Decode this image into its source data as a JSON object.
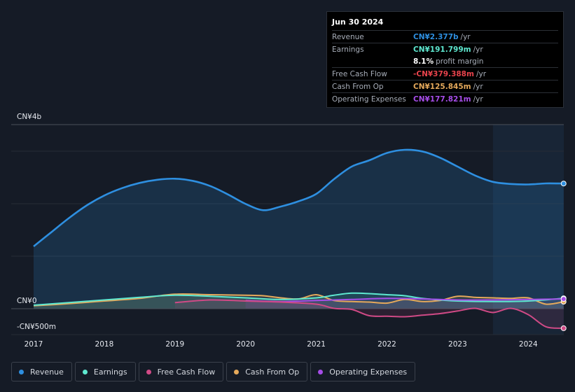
{
  "tooltip": {
    "date": "Jun 30 2024",
    "rows": [
      {
        "label": "Revenue",
        "value": "CN¥2.377b",
        "unit": "/yr",
        "color": "#2e8fe0"
      },
      {
        "label": "Earnings",
        "value": "CN¥191.799m",
        "unit": "/yr",
        "color": "#5ee8d0"
      },
      {
        "label": "",
        "value": "8.1%",
        "unit": "profit margin",
        "color": "#ffffff"
      },
      {
        "label": "Free Cash Flow",
        "value": "-CN¥379.388m",
        "unit": "/yr",
        "color": "#e8434c"
      },
      {
        "label": "Cash From Op",
        "value": "CN¥125.845m",
        "unit": "/yr",
        "color": "#e5a95b"
      },
      {
        "label": "Operating Expenses",
        "value": "CN¥177.821m",
        "unit": "/yr",
        "color": "#a64de8"
      }
    ]
  },
  "legend": [
    {
      "label": "Revenue",
      "color": "#2e8fe0"
    },
    {
      "label": "Earnings",
      "color": "#5ee8d0"
    },
    {
      "label": "Free Cash Flow",
      "color": "#d04a86"
    },
    {
      "label": "Cash From Op",
      "color": "#e5a95b"
    },
    {
      "label": "Operating Expenses",
      "color": "#a64de8"
    }
  ],
  "chart_data": {
    "type": "area",
    "title": "",
    "xlabel": "",
    "ylabel": "",
    "unit": "CN¥ millions",
    "y_labels": [
      "CN¥4b",
      "CN¥0",
      "-CN¥500m"
    ],
    "ylim": [
      -500,
      3500
    ],
    "xlim": [
      2016.98,
      2024.5
    ],
    "x_ticks": [
      "2017",
      "2018",
      "2019",
      "2020",
      "2021",
      "2022",
      "2023",
      "2024"
    ],
    "x_tick_values": [
      2017,
      2018,
      2019,
      2020,
      2021,
      2022,
      2023,
      2024
    ],
    "forecast_start": 2023.5,
    "series": [
      {
        "name": "Revenue",
        "color": "#2e8fe0",
        "x": [
          2017,
          2017.25,
          2017.5,
          2017.75,
          2018,
          2018.25,
          2018.5,
          2018.75,
          2019,
          2019.25,
          2019.5,
          2019.75,
          2020,
          2020.25,
          2020.5,
          2020.75,
          2021,
          2021.25,
          2021.5,
          2021.75,
          2022,
          2022.25,
          2022.5,
          2022.75,
          2023,
          2023.25,
          2023.5,
          2023.75,
          2024,
          2024.25,
          2024.5
        ],
        "values": [
          1180,
          1450,
          1720,
          1960,
          2150,
          2290,
          2390,
          2450,
          2470,
          2430,
          2330,
          2170,
          1990,
          1870,
          1940,
          2040,
          2180,
          2460,
          2700,
          2820,
          2960,
          3020,
          2990,
          2870,
          2700,
          2530,
          2410,
          2370,
          2360,
          2380,
          2377
        ]
      },
      {
        "name": "Earnings",
        "color": "#5ee8d0",
        "x": [
          2017,
          2017.5,
          2018,
          2018.5,
          2019,
          2019.5,
          2020,
          2020.5,
          2021,
          2021.25,
          2021.5,
          2021.75,
          2022,
          2022.25,
          2022.5,
          2022.75,
          2023,
          2023.5,
          2024,
          2024.5
        ],
        "values": [
          60,
          110,
          160,
          210,
          250,
          230,
          200,
          170,
          200,
          250,
          290,
          280,
          260,
          240,
          190,
          160,
          140,
          130,
          140,
          192
        ]
      },
      {
        "name": "Free Cash Flow",
        "color": "#d04a86",
        "x": [
          2019,
          2019.5,
          2020,
          2020.5,
          2021,
          2021.25,
          2021.5,
          2021.75,
          2022,
          2022.25,
          2022.5,
          2022.75,
          2023,
          2023.25,
          2023.5,
          2023.75,
          2024,
          2024.25,
          2024.5
        ],
        "values": [
          110,
          160,
          140,
          120,
          80,
          0,
          -20,
          -140,
          -150,
          -160,
          -130,
          -100,
          -50,
          0,
          -80,
          0,
          -120,
          -350,
          -379
        ]
      },
      {
        "name": "Cash From Op",
        "color": "#e5a95b",
        "x": [
          2017,
          2017.5,
          2018,
          2018.5,
          2019,
          2019.5,
          2020,
          2020.25,
          2020.5,
          2020.75,
          2021,
          2021.25,
          2021.5,
          2021.75,
          2022,
          2022.25,
          2022.5,
          2022.75,
          2023,
          2023.25,
          2023.5,
          2023.75,
          2024,
          2024.25,
          2024.5
        ],
        "values": [
          50,
          90,
          140,
          190,
          270,
          260,
          250,
          240,
          200,
          180,
          260,
          150,
          130,
          120,
          100,
          170,
          130,
          150,
          230,
          210,
          200,
          190,
          200,
          80,
          126
        ]
      },
      {
        "name": "Operating Expenses",
        "color": "#a64de8",
        "x": [
          2020,
          2020.5,
          2021,
          2021.5,
          2022,
          2022.5,
          2023,
          2023.5,
          2024,
          2024.5
        ],
        "values": [
          150,
          130,
          150,
          170,
          190,
          180,
          160,
          160,
          170,
          178
        ]
      }
    ]
  }
}
